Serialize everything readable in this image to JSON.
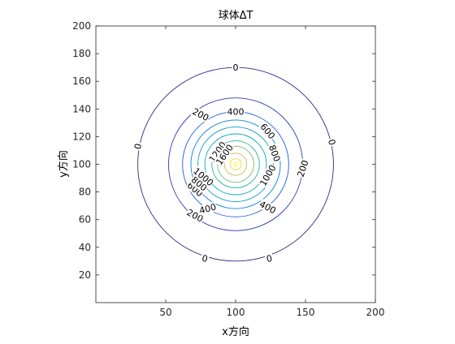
{
  "chart_data": {
    "type": "contour",
    "title": "球体ΔT",
    "xlabel": "x方向",
    "ylabel": "y方向",
    "xlim": [
      0,
      200
    ],
    "ylim": [
      0,
      200
    ],
    "x_ticks": [
      50,
      100,
      150,
      200
    ],
    "y_ticks": [
      20,
      40,
      60,
      80,
      100,
      120,
      140,
      160,
      180,
      200
    ],
    "grid": false,
    "colormap": "parula",
    "center": {
      "x": 100,
      "y": 100
    },
    "levels": [
      {
        "value": 0,
        "radius": 70,
        "color": "#352a87"
      },
      {
        "value": 200,
        "radius": 48,
        "color": "#2c3cb6"
      },
      {
        "value": 400,
        "radius": 38,
        "color": "#1f5ee0"
      },
      {
        "value": 600,
        "radius": 32,
        "color": "#0c7fdc"
      },
      {
        "value": 800,
        "radius": 27,
        "color": "#1399cb"
      },
      {
        "value": 1000,
        "radius": 22,
        "color": "#06a9c1"
      },
      {
        "value": 1200,
        "radius": 17,
        "color": "#2cb59d"
      },
      {
        "value": 1400,
        "radius": 13,
        "color": "#7fbf7b"
      },
      {
        "value": 1600,
        "radius": 8,
        "color": "#d0ba58"
      },
      {
        "value": 1800,
        "radius": 4,
        "color": "#f9d52a"
      },
      {
        "value": 2000,
        "radius": 1.2,
        "color": "#f9fb0e"
      }
    ],
    "contour_labels": [
      {
        "text": "0",
        "x": 100,
        "y": 170,
        "angle": 0
      },
      {
        "text": "0",
        "x": 30,
        "y": 113,
        "angle": -80
      },
      {
        "text": "0",
        "x": 169,
        "y": 116,
        "angle": 75
      },
      {
        "text": "0",
        "x": 78,
        "y": 32,
        "angle": 12
      },
      {
        "text": "0",
        "x": 124,
        "y": 32,
        "angle": -12
      },
      {
        "text": "200",
        "x": 75,
        "y": 136,
        "angle": 28
      },
      {
        "text": "200",
        "x": 148,
        "y": 97,
        "angle": -72
      },
      {
        "text": "200",
        "x": 71,
        "y": 63,
        "angle": 28
      },
      {
        "text": "400",
        "x": 100,
        "y": 138,
        "angle": 0
      },
      {
        "text": "400",
        "x": 123,
        "y": 69,
        "angle": 28
      },
      {
        "text": "400",
        "x": 80,
        "y": 68,
        "angle": -15
      },
      {
        "text": "600",
        "x": 123,
        "y": 124,
        "angle": 50
      },
      {
        "text": "600",
        "x": 71,
        "y": 82,
        "angle": 40
      },
      {
        "text": "800",
        "x": 128,
        "y": 108,
        "angle": 70
      },
      {
        "text": "800",
        "x": 74,
        "y": 86,
        "angle": 40
      },
      {
        "text": "1000",
        "x": 123,
        "y": 92,
        "angle": -60
      },
      {
        "text": "1000",
        "x": 77,
        "y": 91,
        "angle": 40
      },
      {
        "text": "1200",
        "x": 87,
        "y": 109,
        "angle": -55
      },
      {
        "text": "1600",
        "x": 92,
        "y": 107,
        "angle": -55
      }
    ]
  }
}
